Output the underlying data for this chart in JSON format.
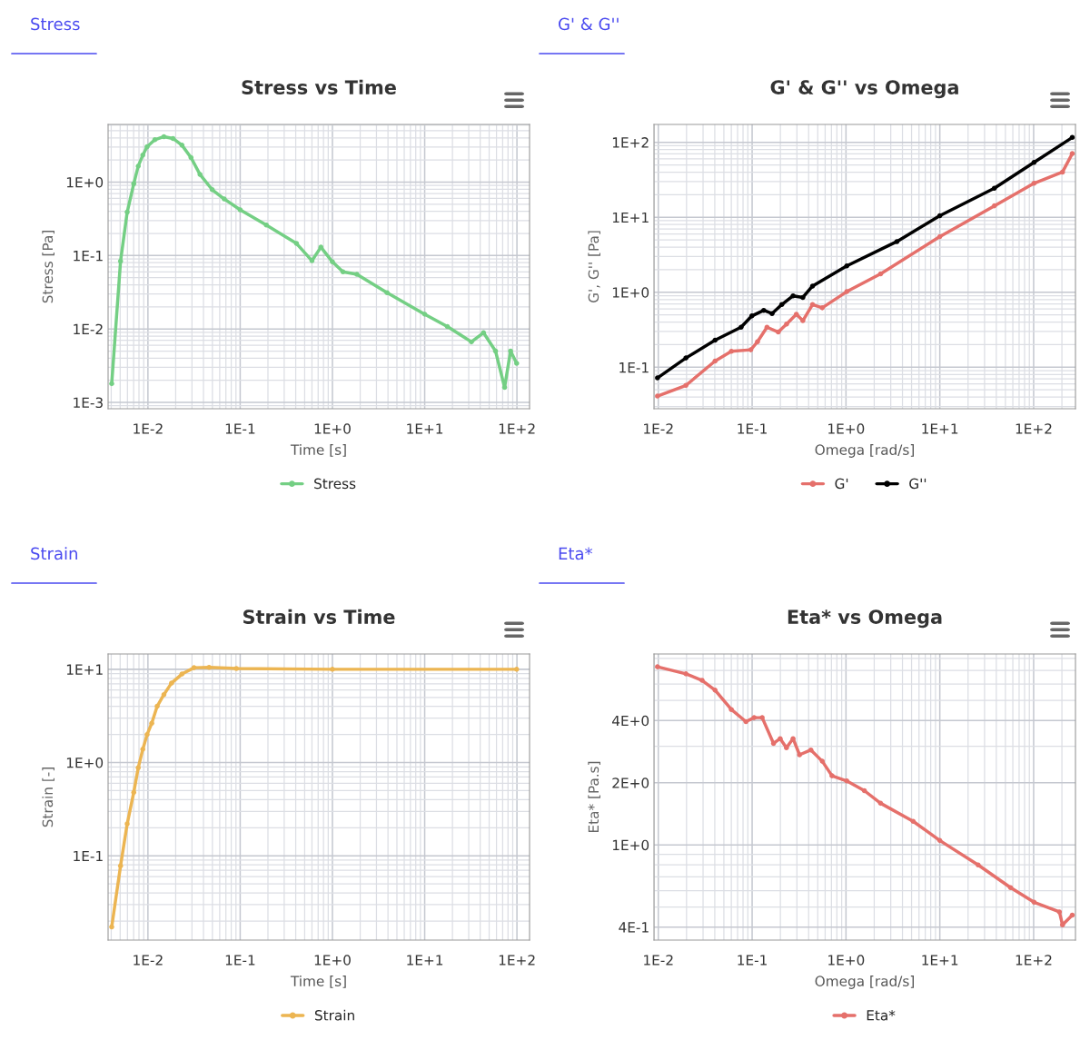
{
  "chart_data": [
    {
      "type": "line",
      "title": "Stress vs Time",
      "xlabel": "Time [s]",
      "ylabel": "Stress [Pa]",
      "annotations": [
        "Stress"
      ],
      "log": "xy",
      "grid": true,
      "legend": "bottom",
      "marker": "circle",
      "line_style": "solid",
      "xlim": [
        0.0037,
        137
      ],
      "ylim": [
        0.00082,
        6.1
      ],
      "xticks": [
        {
          "value": 0.01,
          "label": "1E-2"
        },
        {
          "value": 0.1,
          "label": "1E-1"
        },
        {
          "value": 1,
          "label": "1E+0"
        },
        {
          "value": 10,
          "label": "1E+1"
        },
        {
          "value": 100,
          "label": "1E+2"
        }
      ],
      "yticks": [
        {
          "value": 0.001,
          "label": "1E-3"
        },
        {
          "value": 0.01,
          "label": "1E-2"
        },
        {
          "value": 0.1,
          "label": "1E-1"
        },
        {
          "value": 1,
          "label": "1E+0"
        }
      ],
      "series": [
        {
          "name": "Stress",
          "color": "#74cf84",
          "x": [
            0.00405,
            0.00505,
            0.00596,
            0.00702,
            0.00785,
            0.0088,
            0.0098,
            0.0119,
            0.0149,
            0.0187,
            0.0234,
            0.0293,
            0.0367,
            0.0497,
            0.0671,
            0.1,
            0.192,
            0.408,
            0.6,
            0.75,
            1.0,
            1.3,
            1.84,
            3.91,
            10,
            17.6,
            32.1,
            43.4,
            58.6,
            73.5,
            85.3,
            99.3
          ],
          "values": [
            0.0018,
            0.084,
            0.39,
            0.95,
            1.65,
            2.33,
            3.03,
            3.78,
            4.16,
            3.93,
            3.18,
            2.16,
            1.27,
            0.79,
            0.59,
            0.42,
            0.26,
            0.146,
            0.085,
            0.13,
            0.082,
            0.06,
            0.0556,
            0.0312,
            0.0159,
            0.0108,
            0.00667,
            0.0089,
            0.005,
            0.0016,
            0.005,
            0.0034
          ]
        }
      ]
    },
    {
      "type": "line",
      "title": "G' & G'' vs Omega",
      "xlabel": "Omega [rad/s]",
      "ylabel": "G', G'' [Pa]",
      "annotations": [
        "G' & G''"
      ],
      "log": "xy",
      "grid": true,
      "legend": "bottom",
      "marker": "circle",
      "line_style": "solid",
      "xlim": [
        0.009,
        279
      ],
      "ylim": [
        0.028,
        173
      ],
      "xticks": [
        {
          "value": 0.01,
          "label": "1E-2"
        },
        {
          "value": 0.1,
          "label": "1E-1"
        },
        {
          "value": 1,
          "label": "1E+0"
        },
        {
          "value": 10,
          "label": "1E+1"
        },
        {
          "value": 100,
          "label": "1E+2"
        }
      ],
      "yticks": [
        {
          "value": 0.1,
          "label": "1E-1"
        },
        {
          "value": 1,
          "label": "1E+0"
        },
        {
          "value": 10,
          "label": "1E+1"
        },
        {
          "value": 100,
          "label": "1E+2"
        }
      ],
      "series": [
        {
          "name": "G'",
          "color": "#e5706b",
          "x": [
            0.0098,
            0.0197,
            0.0403,
            0.0601,
            0.0968,
            0.114,
            0.144,
            0.19,
            0.233,
            0.296,
            0.347,
            0.44,
            0.559,
            1.02,
            2.34,
            10,
            38.1,
            101,
            203,
            258
          ],
          "values": [
            0.0413,
            0.0574,
            0.121,
            0.163,
            0.171,
            0.219,
            0.342,
            0.295,
            0.378,
            0.509,
            0.418,
            0.686,
            0.621,
            1.02,
            1.76,
            5.51,
            14.2,
            28.4,
            40.1,
            70.6
          ]
        },
        {
          "name": "G''",
          "color": "#000000",
          "x": [
            0.0098,
            0.0197,
            0.0403,
            0.0762,
            0.0993,
            0.133,
            0.163,
            0.207,
            0.273,
            0.347,
            0.44,
            1.02,
            3.49,
            10,
            38.1,
            101,
            258
          ],
          "values": [
            0.0721,
            0.133,
            0.23,
            0.342,
            0.484,
            0.574,
            0.52,
            0.686,
            0.897,
            0.853,
            1.21,
            2.25,
            4.75,
            10.5,
            24.4,
            54.1,
            116
          ]
        }
      ]
    },
    {
      "type": "line",
      "title": "Strain vs Time",
      "xlabel": "Time [s]",
      "ylabel": "Strain [-]",
      "annotations": [
        "Strain"
      ],
      "log": "xy",
      "grid": true,
      "legend": "bottom",
      "marker": "circle",
      "line_style": "solid",
      "xlim": [
        0.0037,
        137
      ],
      "ylim": [
        0.0125,
        14.6
      ],
      "xticks": [
        {
          "value": 0.01,
          "label": "1E-2"
        },
        {
          "value": 0.1,
          "label": "1E-1"
        },
        {
          "value": 1,
          "label": "1E+0"
        },
        {
          "value": 10,
          "label": "1E+1"
        },
        {
          "value": 100,
          "label": "1E+2"
        }
      ],
      "yticks": [
        {
          "value": 0.1,
          "label": "1E-1"
        },
        {
          "value": 1,
          "label": "1E+0"
        },
        {
          "value": 10,
          "label": "1E+1"
        }
      ],
      "series": [
        {
          "name": "Strain",
          "color": "#ecb552",
          "x": [
            0.00405,
            0.00505,
            0.00596,
            0.00702,
            0.00785,
            0.0088,
            0.0098,
            0.011,
            0.0126,
            0.0149,
            0.018,
            0.0234,
            0.0316,
            0.046,
            0.0908,
            1.0,
            99.3
          ],
          "values": [
            0.0173,
            0.0783,
            0.22,
            0.479,
            0.879,
            1.39,
            2.0,
            2.64,
            4.02,
            5.36,
            7.1,
            8.9,
            10.4,
            10.5,
            10.2,
            10.0,
            10.0
          ]
        }
      ]
    },
    {
      "type": "line",
      "title": "Eta* vs Omega",
      "xlabel": "Omega [rad/s]",
      "ylabel": "Eta* [Pa.s]",
      "annotations": [
        "Eta*"
      ],
      "log": "xy",
      "grid": true,
      "legend": "bottom",
      "marker": "circle",
      "line_style": "solid",
      "xlim": [
        0.009,
        279
      ],
      "ylim": [
        0.346,
        8.4
      ],
      "xticks": [
        {
          "value": 0.01,
          "label": "1E-2"
        },
        {
          "value": 0.1,
          "label": "1E-1"
        },
        {
          "value": 1,
          "label": "1E+0"
        },
        {
          "value": 10,
          "label": "1E+1"
        },
        {
          "value": 100,
          "label": "1E+2"
        }
      ],
      "yticks": [
        {
          "value": 0.4,
          "label": "4E-1"
        },
        {
          "value": 1,
          "label": "1E+0"
        },
        {
          "value": 2,
          "label": "2E+0"
        },
        {
          "value": 4,
          "label": "4E+0"
        }
      ],
      "series": [
        {
          "name": "Eta*",
          "color": "#e5706b",
          "x": [
            0.0098,
            0.0197,
            0.0293,
            0.0403,
            0.0601,
            0.0859,
            0.105,
            0.128,
            0.169,
            0.199,
            0.232,
            0.273,
            0.32,
            0.423,
            0.559,
            0.71,
            1.02,
            1.57,
            2.34,
            5.2,
            10,
            25.6,
            56.8,
            101,
            188,
            203,
            258
          ],
          "values": [
            7.28,
            6.73,
            6.26,
            5.61,
            4.52,
            3.95,
            4.13,
            4.13,
            3.1,
            3.27,
            2.95,
            3.27,
            2.73,
            2.88,
            2.54,
            2.16,
            2.04,
            1.83,
            1.59,
            1.3,
            1.05,
            0.8,
            0.621,
            0.528,
            0.474,
            0.41,
            0.457
          ]
        }
      ]
    }
  ]
}
